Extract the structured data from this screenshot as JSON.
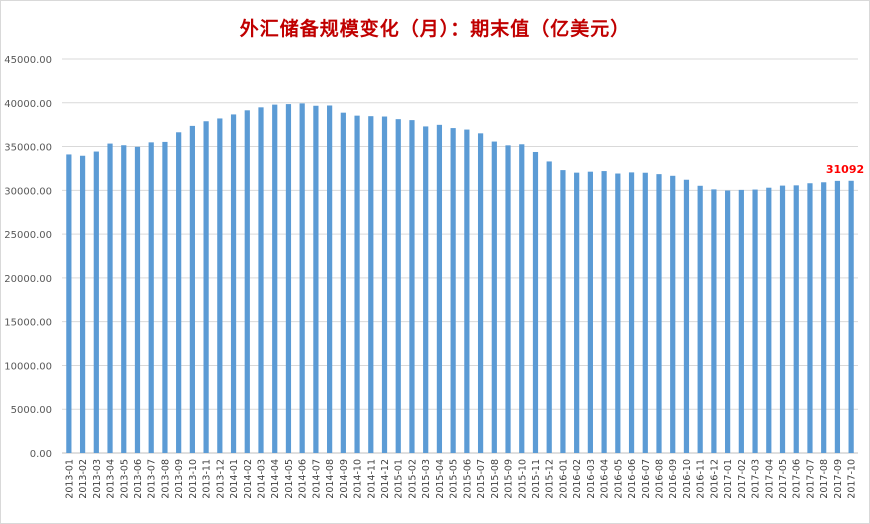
{
  "chart_data": {
    "type": "bar",
    "title": "外汇储备规模变化（月）：期末值（亿美元）",
    "xlabel": "",
    "ylabel": "",
    "ylim": [
      0,
      45000
    ],
    "yticks": [
      "0.00",
      "5000.00",
      "10000.00",
      "15000.00",
      "20000.00",
      "25000.00",
      "30000.00",
      "35000.00",
      "40000.00",
      "45000.00"
    ],
    "grid": true,
    "bar_color": "#5b9bd5",
    "annotation_color": "#ff0000",
    "annotation": {
      "category": "2017-10",
      "text": "31092"
    },
    "categories": [
      "2013-01",
      "2013-02",
      "2013-03",
      "2013-04",
      "2013-05",
      "2013-06",
      "2013-07",
      "2013-08",
      "2013-09",
      "2013-10",
      "2013-11",
      "2013-12",
      "2014-01",
      "2014-02",
      "2014-03",
      "2014-04",
      "2014-05",
      "2014-06",
      "2014-07",
      "2014-08",
      "2014-09",
      "2014-10",
      "2014-11",
      "2014-12",
      "2015-01",
      "2015-02",
      "2015-03",
      "2015-04",
      "2015-05",
      "2015-06",
      "2015-07",
      "2015-08",
      "2015-09",
      "2015-10",
      "2015-11",
      "2015-12",
      "2016-01",
      "2016-02",
      "2016-03",
      "2016-04",
      "2016-05",
      "2016-06",
      "2016-07",
      "2016-08",
      "2016-09",
      "2016-10",
      "2016-11",
      "2016-12",
      "2017-01",
      "2017-02",
      "2017-03",
      "2017-04",
      "2017-05",
      "2017-06",
      "2017-07",
      "2017-08",
      "2017-09",
      "2017-10"
    ],
    "values": [
      34100,
      33950,
      34430,
      35340,
      35150,
      34970,
      35480,
      35530,
      36630,
      37360,
      37890,
      38210,
      38670,
      39140,
      39480,
      39790,
      39850,
      39930,
      39660,
      39690,
      38870,
      38530,
      38470,
      38430,
      38130,
      38020,
      37300,
      37480,
      37110,
      36940,
      36510,
      35570,
      35140,
      35260,
      34380,
      33300,
      32310,
      32020,
      32130,
      32200,
      31920,
      32050,
      32010,
      31850,
      31660,
      31210,
      30520,
      30110,
      29980,
      30050,
      30090,
      30300,
      30540,
      30570,
      30810,
      30920,
      31080,
      31092
    ]
  }
}
